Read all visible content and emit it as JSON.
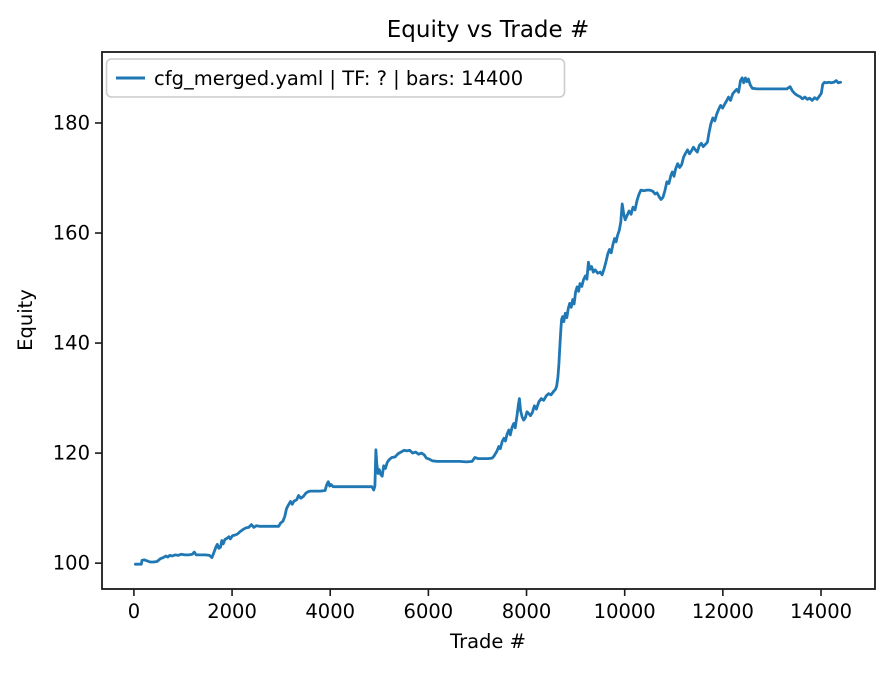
{
  "figure": {
    "background": "#ffffff",
    "spine_color": "#1a1a1a"
  },
  "chart_data": {
    "type": "line",
    "title": "Equity vs Trade #",
    "xlabel": "Trade #",
    "ylabel": "Equity",
    "xlim": [
      -650,
      15100
    ],
    "ylim": [
      95.3,
      192.9
    ],
    "xticks": [
      0,
      2000,
      4000,
      6000,
      8000,
      10000,
      12000,
      14000
    ],
    "yticks": [
      100,
      120,
      140,
      160,
      180
    ],
    "grid": false,
    "legend": {
      "position": "upper-left",
      "entries": [
        {
          "label": "cfg_merged.yaml | TF: ? | bars: 14400",
          "color": "#1f77b4"
        }
      ]
    },
    "series": [
      {
        "name": "cfg_merged.yaml | TF: ? | bars: 14400",
        "color": "#1f77b4",
        "points": [
          [
            30,
            99.8
          ],
          [
            90,
            99.8
          ],
          [
            150,
            99.8
          ],
          [
            165,
            100.5
          ],
          [
            210,
            100.6
          ],
          [
            270,
            100.4
          ],
          [
            330,
            100.2
          ],
          [
            400,
            100.2
          ],
          [
            470,
            100.3
          ],
          [
            540,
            100.8
          ],
          [
            600,
            101.0
          ],
          [
            650,
            101.3
          ],
          [
            690,
            101.1
          ],
          [
            730,
            101.4
          ],
          [
            780,
            101.3
          ],
          [
            840,
            101.5
          ],
          [
            900,
            101.4
          ],
          [
            960,
            101.6
          ],
          [
            1040,
            101.5
          ],
          [
            1120,
            101.5
          ],
          [
            1190,
            101.6
          ],
          [
            1230,
            102.0
          ],
          [
            1270,
            101.5
          ],
          [
            1360,
            101.5
          ],
          [
            1460,
            101.5
          ],
          [
            1540,
            101.4
          ],
          [
            1590,
            101.0
          ],
          [
            1620,
            101.7
          ],
          [
            1650,
            102.4
          ],
          [
            1675,
            103.0
          ],
          [
            1700,
            103.4
          ],
          [
            1730,
            102.7
          ],
          [
            1765,
            102.9
          ],
          [
            1790,
            104.1
          ],
          [
            1820,
            103.5
          ],
          [
            1855,
            104.3
          ],
          [
            1895,
            104.5
          ],
          [
            1935,
            104.8
          ],
          [
            1965,
            104.4
          ],
          [
            2010,
            105.0
          ],
          [
            2060,
            105.1
          ],
          [
            2110,
            105.3
          ],
          [
            2160,
            105.7
          ],
          [
            2220,
            106.1
          ],
          [
            2280,
            106.4
          ],
          [
            2340,
            106.5
          ],
          [
            2395,
            107.0
          ],
          [
            2445,
            106.5
          ],
          [
            2495,
            106.8
          ],
          [
            2560,
            106.7
          ],
          [
            2660,
            106.7
          ],
          [
            2760,
            106.7
          ],
          [
            2860,
            106.7
          ],
          [
            2950,
            106.7
          ],
          [
            2990,
            107.3
          ],
          [
            3035,
            107.6
          ],
          [
            3075,
            108.5
          ],
          [
            3110,
            109.9
          ],
          [
            3150,
            110.6
          ],
          [
            3190,
            111.2
          ],
          [
            3225,
            110.7
          ],
          [
            3265,
            111.3
          ],
          [
            3315,
            111.5
          ],
          [
            3355,
            112.3
          ],
          [
            3400,
            111.8
          ],
          [
            3450,
            112.1
          ],
          [
            3500,
            112.7
          ],
          [
            3550,
            113.0
          ],
          [
            3600,
            113.1
          ],
          [
            3700,
            113.1
          ],
          [
            3800,
            113.1
          ],
          [
            3895,
            113.2
          ],
          [
            3930,
            114.3
          ],
          [
            3960,
            114.8
          ],
          [
            3990,
            114.0
          ],
          [
            4015,
            114.3
          ],
          [
            4060,
            113.9
          ],
          [
            4160,
            113.9
          ],
          [
            4320,
            113.9
          ],
          [
            4500,
            113.9
          ],
          [
            4680,
            113.9
          ],
          [
            4850,
            113.9
          ],
          [
            4885,
            113.3
          ],
          [
            4910,
            114.0
          ],
          [
            4930,
            120.6
          ],
          [
            4950,
            118.0
          ],
          [
            4975,
            116.3
          ],
          [
            5000,
            117.0
          ],
          [
            5030,
            116.1
          ],
          [
            5060,
            115.8
          ],
          [
            5090,
            117.7
          ],
          [
            5125,
            117.2
          ],
          [
            5160,
            118.3
          ],
          [
            5200,
            118.8
          ],
          [
            5255,
            119.2
          ],
          [
            5320,
            119.3
          ],
          [
            5385,
            119.9
          ],
          [
            5445,
            120.2
          ],
          [
            5505,
            120.5
          ],
          [
            5560,
            120.4
          ],
          [
            5620,
            120.5
          ],
          [
            5680,
            120.0
          ],
          [
            5740,
            120.2
          ],
          [
            5800,
            119.8
          ],
          [
            5860,
            120.0
          ],
          [
            5915,
            119.7
          ],
          [
            5960,
            119.1
          ],
          [
            6020,
            118.9
          ],
          [
            6080,
            118.6
          ],
          [
            6180,
            118.5
          ],
          [
            6330,
            118.5
          ],
          [
            6480,
            118.5
          ],
          [
            6630,
            118.5
          ],
          [
            6780,
            118.4
          ],
          [
            6890,
            118.5
          ],
          [
            6945,
            119.2
          ],
          [
            7010,
            119.0
          ],
          [
            7110,
            119.0
          ],
          [
            7210,
            119.0
          ],
          [
            7300,
            119.1
          ],
          [
            7340,
            119.5
          ],
          [
            7395,
            120.3
          ],
          [
            7435,
            121.2
          ],
          [
            7465,
            120.8
          ],
          [
            7505,
            122.1
          ],
          [
            7540,
            122.7
          ],
          [
            7570,
            122.2
          ],
          [
            7605,
            123.5
          ],
          [
            7640,
            124.2
          ],
          [
            7670,
            123.3
          ],
          [
            7705,
            124.7
          ],
          [
            7740,
            125.4
          ],
          [
            7770,
            124.6
          ],
          [
            7805,
            126.8
          ],
          [
            7835,
            128.8
          ],
          [
            7855,
            129.9
          ],
          [
            7880,
            127.7
          ],
          [
            7910,
            126.6
          ],
          [
            7940,
            126.0
          ],
          [
            7975,
            126.4
          ],
          [
            8010,
            127.5
          ],
          [
            8045,
            127.2
          ],
          [
            8080,
            126.8
          ],
          [
            8120,
            127.4
          ],
          [
            8160,
            128.6
          ],
          [
            8200,
            128.0
          ],
          [
            8250,
            129.3
          ],
          [
            8300,
            129.9
          ],
          [
            8350,
            129.6
          ],
          [
            8400,
            130.4
          ],
          [
            8450,
            130.8
          ],
          [
            8500,
            130.6
          ],
          [
            8550,
            131.2
          ],
          [
            8590,
            131.6
          ],
          [
            8615,
            132.2
          ],
          [
            8640,
            133.8
          ],
          [
            8660,
            136.2
          ],
          [
            8680,
            139.6
          ],
          [
            8700,
            142.6
          ],
          [
            8715,
            144.3
          ],
          [
            8735,
            144.8
          ],
          [
            8760,
            143.9
          ],
          [
            8790,
            145.4
          ],
          [
            8820,
            144.6
          ],
          [
            8850,
            146.3
          ],
          [
            8880,
            147.2
          ],
          [
            8910,
            146.5
          ],
          [
            8940,
            147.9
          ],
          [
            8970,
            147.1
          ],
          [
            9000,
            149.3
          ],
          [
            9030,
            150.2
          ],
          [
            9060,
            149.4
          ],
          [
            9090,
            150.8
          ],
          [
            9125,
            150.3
          ],
          [
            9160,
            151.5
          ],
          [
            9200,
            152.2
          ],
          [
            9230,
            151.6
          ],
          [
            9260,
            154.7
          ],
          [
            9290,
            153.4
          ],
          [
            9325,
            153.9
          ],
          [
            9360,
            152.9
          ],
          [
            9400,
            153.3
          ],
          [
            9450,
            152.7
          ],
          [
            9500,
            152.9
          ],
          [
            9540,
            152.4
          ],
          [
            9580,
            153.5
          ],
          [
            9620,
            154.8
          ],
          [
            9655,
            156.2
          ],
          [
            9690,
            157.0
          ],
          [
            9725,
            156.4
          ],
          [
            9760,
            157.9
          ],
          [
            9795,
            159.0
          ],
          [
            9825,
            158.4
          ],
          [
            9855,
            159.6
          ],
          [
            9890,
            160.5
          ],
          [
            9920,
            162.0
          ],
          [
            9950,
            165.3
          ],
          [
            9980,
            163.5
          ],
          [
            10010,
            162.4
          ],
          [
            10050,
            163.2
          ],
          [
            10090,
            164.0
          ],
          [
            10130,
            163.4
          ],
          [
            10170,
            164.7
          ],
          [
            10210,
            164.2
          ],
          [
            10250,
            165.9
          ],
          [
            10290,
            167.0
          ],
          [
            10330,
            167.8
          ],
          [
            10390,
            167.7
          ],
          [
            10450,
            167.8
          ],
          [
            10510,
            167.8
          ],
          [
            10570,
            167.6
          ],
          [
            10620,
            167.1
          ],
          [
            10660,
            167.3
          ],
          [
            10700,
            166.6
          ],
          [
            10740,
            166.1
          ],
          [
            10780,
            166.5
          ],
          [
            10820,
            167.7
          ],
          [
            10860,
            169.3
          ],
          [
            10900,
            169.0
          ],
          [
            10940,
            170.4
          ],
          [
            10970,
            171.1
          ],
          [
            11005,
            170.3
          ],
          [
            11040,
            171.7
          ],
          [
            11080,
            172.6
          ],
          [
            11120,
            171.9
          ],
          [
            11160,
            172.4
          ],
          [
            11200,
            173.8
          ],
          [
            11240,
            174.5
          ],
          [
            11280,
            175.1
          ],
          [
            11320,
            174.4
          ],
          [
            11360,
            174.9
          ],
          [
            11400,
            175.6
          ],
          [
            11440,
            175.1
          ],
          [
            11480,
            174.7
          ],
          [
            11520,
            175.9
          ],
          [
            11560,
            176.3
          ],
          [
            11600,
            175.7
          ],
          [
            11645,
            176.1
          ],
          [
            11685,
            176.5
          ],
          [
            11720,
            178.3
          ],
          [
            11755,
            179.8
          ],
          [
            11795,
            180.9
          ],
          [
            11835,
            180.4
          ],
          [
            11875,
            181.6
          ],
          [
            11915,
            182.5
          ],
          [
            11955,
            183.2
          ],
          [
            11995,
            182.7
          ],
          [
            12035,
            183.4
          ],
          [
            12075,
            184.0
          ],
          [
            12115,
            184.7
          ],
          [
            12155,
            184.1
          ],
          [
            12200,
            185.3
          ],
          [
            12240,
            185.7
          ],
          [
            12280,
            186.1
          ],
          [
            12320,
            185.6
          ],
          [
            12360,
            187.7
          ],
          [
            12395,
            188.2
          ],
          [
            12425,
            187.3
          ],
          [
            12460,
            188.2
          ],
          [
            12490,
            187.5
          ],
          [
            12520,
            188.0
          ],
          [
            12560,
            186.9
          ],
          [
            12600,
            186.3
          ],
          [
            12700,
            186.2
          ],
          [
            12850,
            186.2
          ],
          [
            13000,
            186.2
          ],
          [
            13150,
            186.2
          ],
          [
            13300,
            186.2
          ],
          [
            13370,
            186.6
          ],
          [
            13420,
            185.8
          ],
          [
            13470,
            185.3
          ],
          [
            13520,
            185.0
          ],
          [
            13570,
            184.8
          ],
          [
            13620,
            184.4
          ],
          [
            13670,
            184.7
          ],
          [
            13720,
            184.3
          ],
          [
            13770,
            184.5
          ],
          [
            13820,
            184.1
          ],
          [
            13870,
            184.6
          ],
          [
            13920,
            184.3
          ],
          [
            13970,
            184.9
          ],
          [
            14005,
            185.4
          ],
          [
            14035,
            187.0
          ],
          [
            14070,
            187.4
          ],
          [
            14110,
            187.3
          ],
          [
            14160,
            187.4
          ],
          [
            14210,
            187.3
          ],
          [
            14260,
            187.4
          ],
          [
            14310,
            187.7
          ],
          [
            14350,
            187.3
          ],
          [
            14400,
            187.4
          ]
        ]
      }
    ]
  }
}
